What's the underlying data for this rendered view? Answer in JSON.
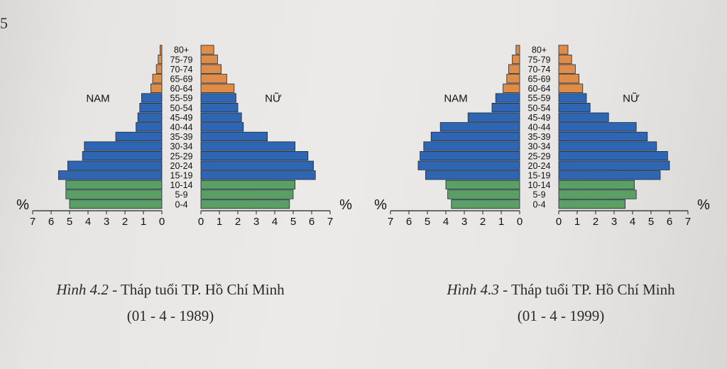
{
  "page_marker": "5",
  "chart_data": [
    {
      "type": "bar",
      "orientation": "population-pyramid",
      "age_groups": [
        "0-4",
        "5-9",
        "10-14",
        "15-19",
        "20-24",
        "25-29",
        "30-34",
        "35-39",
        "40-44",
        "45-49",
        "50-54",
        "55-59",
        "60-64",
        "65-69",
        "70-74",
        "75-79",
        "80+"
      ],
      "series": [
        {
          "name": "NAM",
          "values": [
            5.0,
            5.2,
            5.2,
            5.6,
            5.1,
            4.3,
            4.2,
            2.5,
            1.4,
            1.3,
            1.2,
            1.1,
            0.6,
            0.5,
            0.3,
            0.2,
            0.1
          ]
        },
        {
          "name": "NỮ",
          "values": [
            4.8,
            5.0,
            5.1,
            6.2,
            6.1,
            5.8,
            5.1,
            3.6,
            2.3,
            2.2,
            2.0,
            1.9,
            1.8,
            1.4,
            1.1,
            0.9,
            0.7
          ]
        }
      ],
      "x_ticks_left": [
        "7",
        "6",
        "5",
        "4",
        "3",
        "2",
        "1",
        "0"
      ],
      "x_ticks_right": [
        "0",
        "1",
        "2",
        "3",
        "4",
        "5",
        "6",
        "7"
      ],
      "unit": "%",
      "xlim": [
        0,
        7
      ],
      "colors": {
        "young": "#5a9f64",
        "working": "#2f66b3",
        "old": "#de8c47"
      },
      "caption_label": "Hình 4.2",
      "caption_dash": " - ",
      "caption_title": "Tháp tuổi TP. Hồ Chí Minh",
      "caption_date": "(01 - 4 - 1989)"
    },
    {
      "type": "bar",
      "orientation": "population-pyramid",
      "age_groups": [
        "0-4",
        "5-9",
        "10-14",
        "15-19",
        "20-24",
        "25-29",
        "30-34",
        "35-39",
        "40-44",
        "45-49",
        "50-54",
        "55-59",
        "60-64",
        "65-69",
        "70-74",
        "75-79",
        "80+"
      ],
      "series": [
        {
          "name": "NAM",
          "values": [
            3.7,
            3.9,
            4.0,
            5.1,
            5.5,
            5.4,
            5.2,
            4.8,
            4.3,
            2.8,
            1.5,
            1.3,
            0.9,
            0.7,
            0.6,
            0.4,
            0.2
          ]
        },
        {
          "name": "NỮ",
          "values": [
            3.6,
            4.2,
            4.1,
            5.5,
            6.0,
            5.9,
            5.3,
            4.8,
            4.2,
            2.7,
            1.7,
            1.5,
            1.3,
            1.1,
            0.9,
            0.7,
            0.5
          ]
        }
      ],
      "x_ticks_left": [
        "7",
        "6",
        "5",
        "4",
        "3",
        "2",
        "1",
        "0"
      ],
      "x_ticks_right": [
        "0",
        "1",
        "2",
        "3",
        "4",
        "5",
        "6",
        "7"
      ],
      "unit": "%",
      "xlim": [
        0,
        7
      ],
      "colors": {
        "young": "#5a9f64",
        "working": "#2f66b3",
        "old": "#de8c47"
      },
      "caption_label": "Hình 4.3",
      "caption_dash": " - ",
      "caption_title": "Tháp tuổi TP. Hồ Chí Minh",
      "caption_date": "(01 - 4 - 1999)"
    }
  ]
}
